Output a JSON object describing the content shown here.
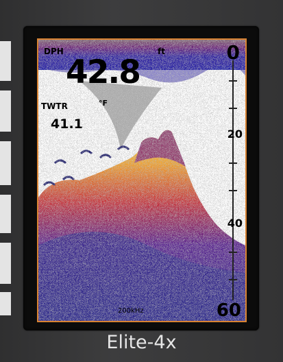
{
  "device": {
    "model": "Elite-4x"
  },
  "display": {
    "depth_label": "DPH",
    "depth_unit": "ft",
    "depth_value": "42.8",
    "water_temp_label": "TWTR",
    "water_temp_unit": "°F",
    "water_temp_value": "41.1",
    "frequency": "200kHz",
    "scale_marks": [
      "0",
      "20",
      "40",
      "60"
    ]
  },
  "colors": {
    "screen_border": "#d98332",
    "sonar_strong": "#f5d24a",
    "sonar_medium": "#e0782a",
    "sonar_weak": "#7a1f7a",
    "sonar_background_noise": "#2d2a8c",
    "surface_clutter": "#1c1ca8"
  }
}
